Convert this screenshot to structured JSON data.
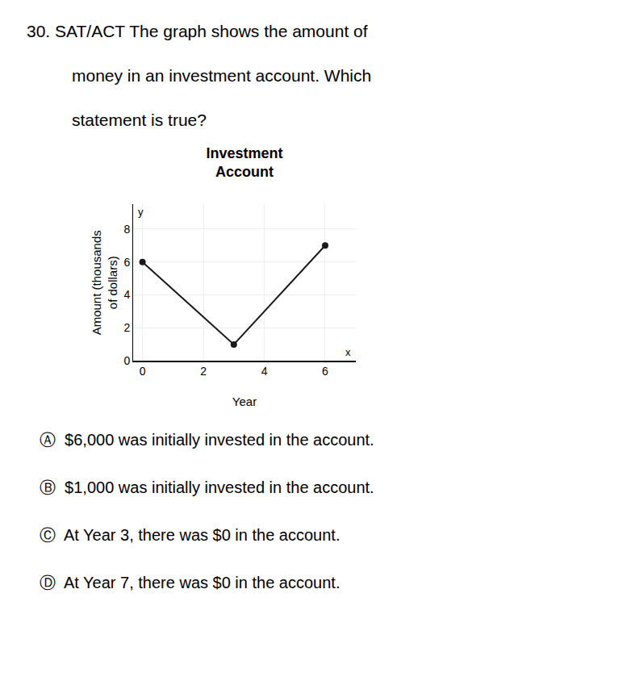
{
  "chart_data": {
    "type": "line",
    "title": "Investment\nAccount",
    "x_label": "Year",
    "y_label": "Amount (thousands\nof dollars)",
    "x": [
      0,
      3,
      6
    ],
    "values": [
      6,
      1,
      7
    ],
    "color": "#1a1a1a",
    "marker": "circle",
    "xlim": [
      -0.3,
      7
    ],
    "ylim": [
      0,
      9.5
    ],
    "xticks": [
      0,
      2,
      4,
      6
    ],
    "yticks": [
      0,
      2,
      4,
      6,
      8
    ],
    "grid": true,
    "annotations": [
      "30. SAT/ACT The graph shows the amount of",
      "money in an investment account. Which",
      "statement is true?",
      "Ⓐ  $6,000 was initially invested in the account.",
      "Ⓑ  $1,000 was initially invested in the account.",
      "Ⓒ  At Year 3, there was $0 in the account.",
      "Ⓓ  At Year 7, there was $0 in the account.",
      "y",
      "x"
    ]
  }
}
